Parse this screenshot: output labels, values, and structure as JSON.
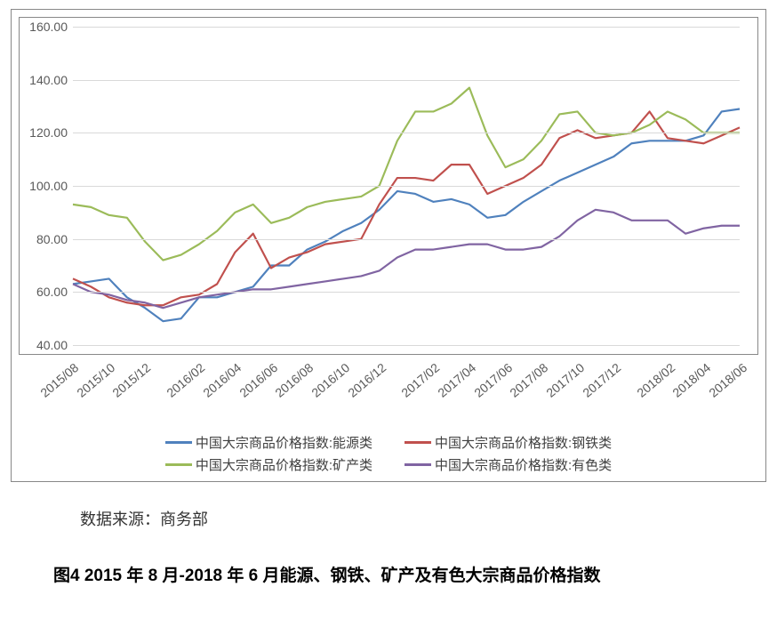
{
  "chart": {
    "type": "line",
    "background_color": "#ffffff",
    "border_color": "#888888",
    "grid_color": "#d9d9d9",
    "axis_text_color": "#595959",
    "ylim": [
      40,
      160
    ],
    "ytick_step": 20,
    "y_decimals": 2,
    "label_fontsize": 14,
    "x_labels": [
      "2015/08",
      "2015/10",
      "2015/12",
      "2016/02",
      "2016/04",
      "2016/06",
      "2016/08",
      "2016/10",
      "2016/12",
      "2017/02",
      "2017/04",
      "2017/06",
      "2017/08",
      "2017/10",
      "2017/12",
      "2018/02",
      "2018/04",
      "2018/06"
    ],
    "x_label_rotation_deg": -40,
    "line_width": 2.2,
    "series": [
      {
        "name": "中国大宗商品价格指数:能源类",
        "color": "#4f81bd",
        "values": [
          63,
          64,
          65,
          58,
          54,
          49,
          50,
          58,
          58,
          60,
          62,
          70,
          70,
          76,
          79,
          83,
          86,
          91,
          98,
          97,
          94,
          95,
          93,
          88,
          89,
          94,
          98,
          102,
          105,
          108,
          111,
          116,
          117,
          117,
          117,
          119,
          128,
          129
        ]
      },
      {
        "name": "中国大宗商品价格指数:钢铁类",
        "color": "#c0504d",
        "values": [
          65,
          62,
          58,
          56,
          55,
          55,
          58,
          59,
          63,
          75,
          82,
          69,
          73,
          75,
          78,
          79,
          80,
          93,
          103,
          103,
          102,
          108,
          108,
          97,
          100,
          103,
          108,
          118,
          121,
          118,
          119,
          120,
          128,
          118,
          117,
          116,
          119,
          122
        ]
      },
      {
        "name": "中国大宗商品价格指数:矿产类",
        "color": "#9bbb59",
        "values": [
          93,
          92,
          89,
          88,
          79,
          72,
          74,
          78,
          83,
          90,
          93,
          86,
          88,
          92,
          94,
          95,
          96,
          100,
          117,
          128,
          128,
          131,
          137,
          119,
          107,
          110,
          117,
          127,
          128,
          120,
          119,
          120,
          123,
          128,
          125,
          120,
          120,
          120
        ]
      },
      {
        "name": "中国大宗商品价格指数:有色类",
        "color": "#8064a2",
        "values": [
          63,
          60,
          59,
          57,
          56,
          54,
          56,
          58,
          59,
          60,
          61,
          61,
          62,
          63,
          64,
          65,
          66,
          68,
          73,
          76,
          76,
          77,
          78,
          78,
          76,
          76,
          77,
          81,
          87,
          91,
          90,
          87,
          87,
          87,
          82,
          84,
          85,
          85
        ]
      }
    ],
    "legend_fontsize": 15,
    "legend_text_color": "#404040"
  },
  "source_label": "数据来源：商务部",
  "caption": "图4 2015 年 8 月-2018 年 6 月能源、钢铁、矿产及有色大宗商品价格指数"
}
